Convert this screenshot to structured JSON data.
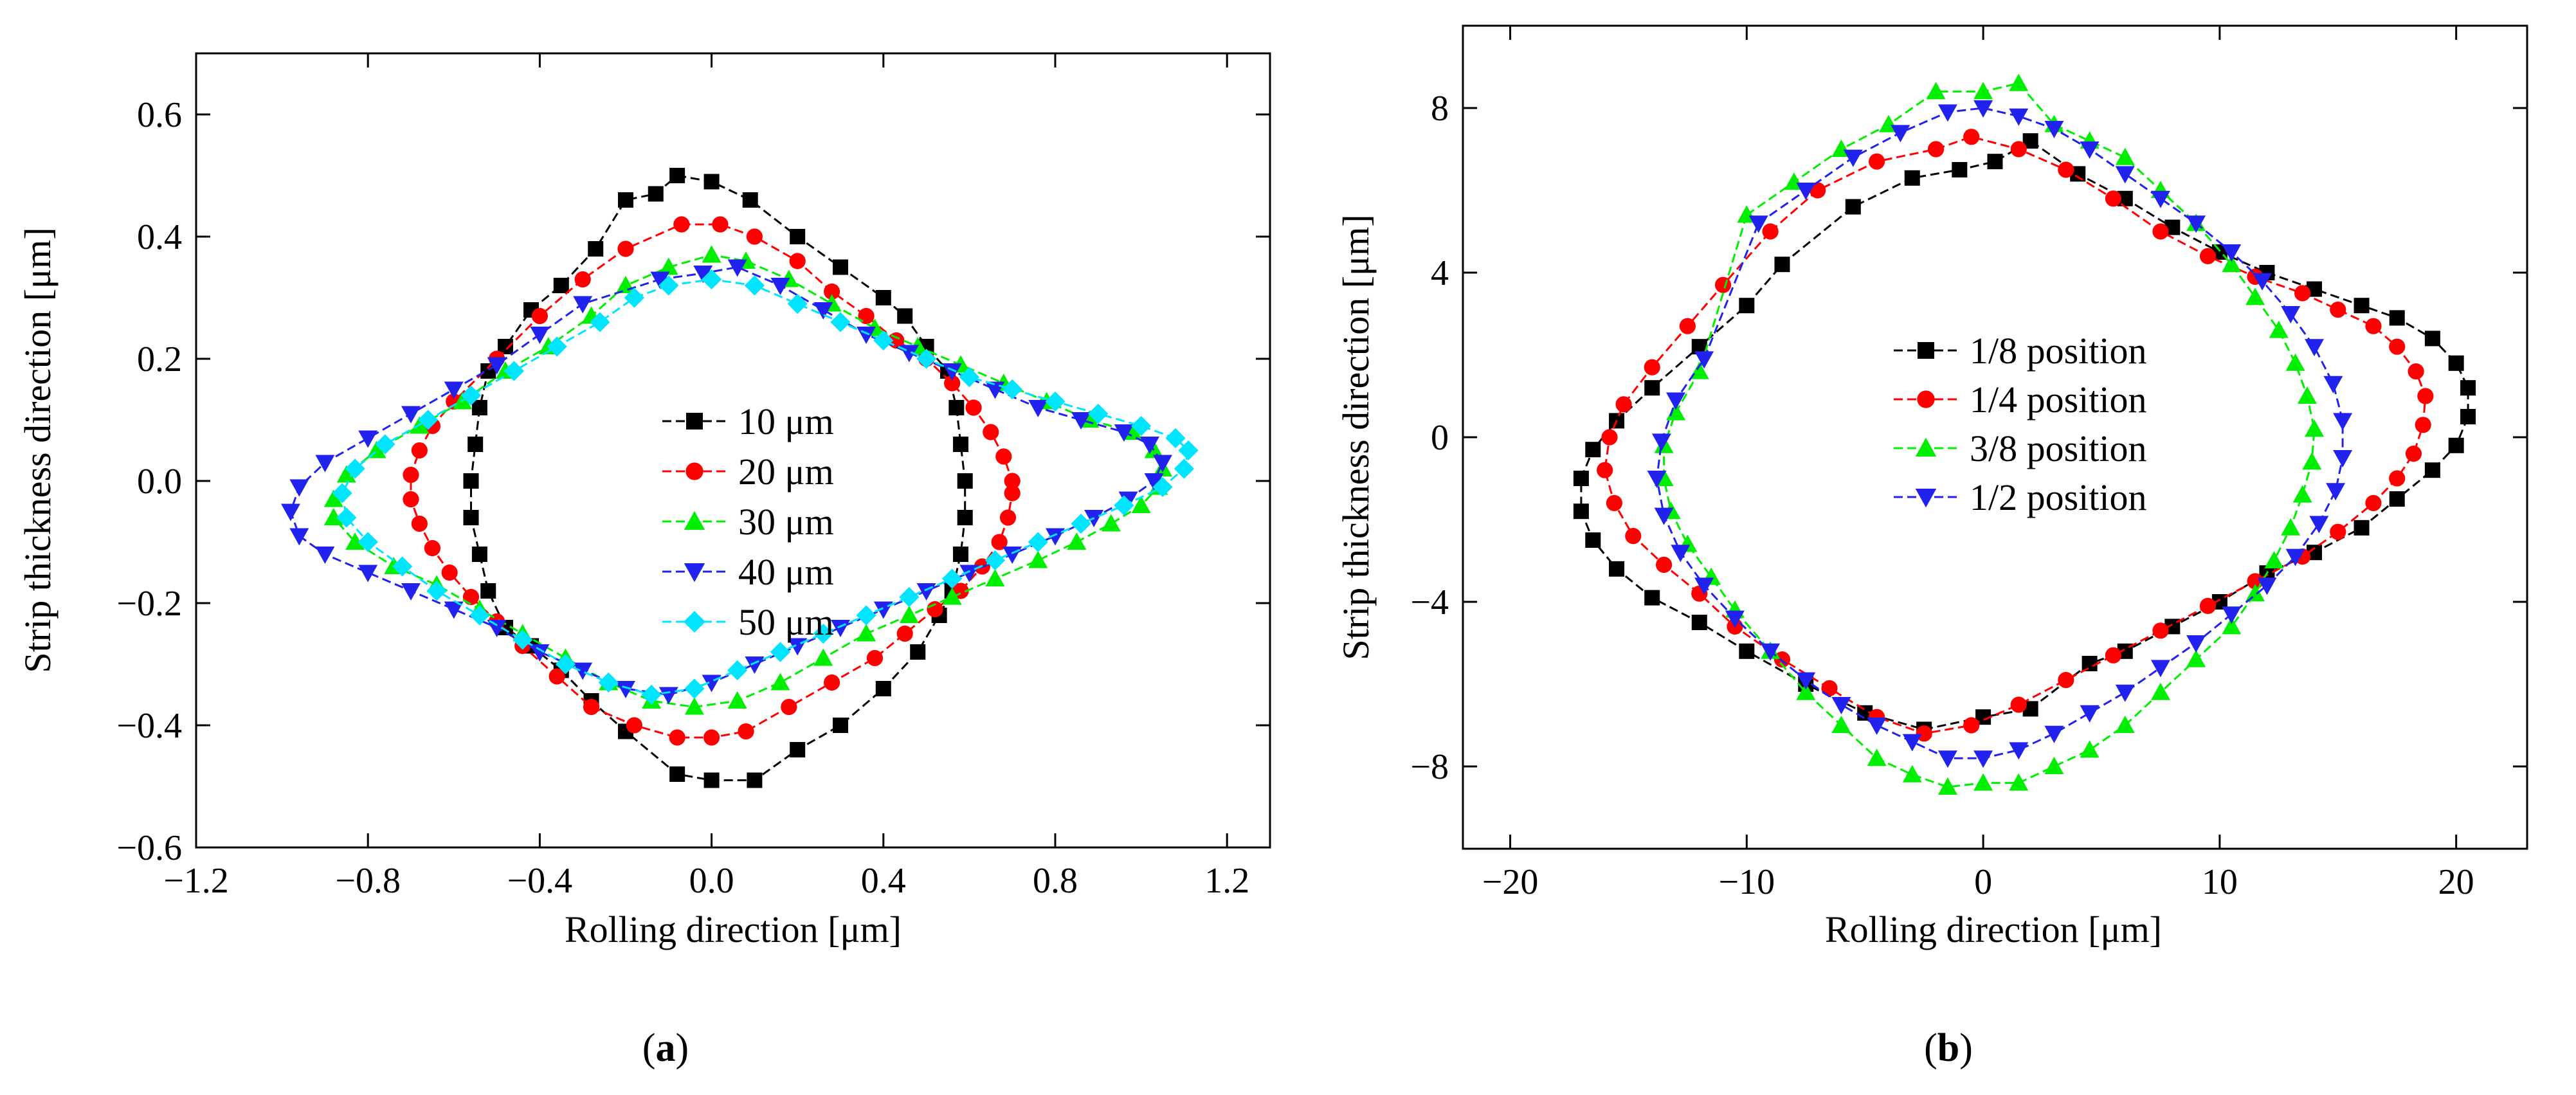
{
  "chart_data": [
    {
      "type": "scatter",
      "panel_label": "a",
      "xlabel": "Rolling direction [μm]",
      "ylabel": "Strip thickness direction [μm]",
      "xlim": [
        -1.2,
        1.3
      ],
      "ylim": [
        -0.6,
        0.7
      ],
      "xticks": [
        -1.2,
        -0.8,
        -0.4,
        0.0,
        0.4,
        0.8,
        1.2
      ],
      "xtick_labels": [
        "−1.2",
        "−0.8",
        "−0.4",
        "0.0",
        "0.4",
        "0.8",
        "1.2"
      ],
      "yticks": [
        -0.6,
        -0.4,
        -0.2,
        0.0,
        0.2,
        0.4,
        0.6
      ],
      "ytick_labels": [
        "−0.6",
        "−0.4",
        "−0.2",
        "0.0",
        "0.2",
        "0.4",
        "0.6"
      ],
      "legend_position": "center",
      "series": [
        {
          "name": "10 μm",
          "color": "#000000",
          "marker": "square",
          "x": [
            -0.08,
            0.0,
            0.09,
            0.2,
            0.3,
            0.4,
            0.45,
            0.5,
            0.55,
            0.57,
            0.58,
            0.59,
            0.59,
            0.58,
            0.56,
            0.53,
            0.48,
            0.4,
            0.3,
            0.2,
            0.1,
            0.0,
            -0.08,
            -0.2,
            -0.28,
            -0.35,
            -0.42,
            -0.48,
            -0.52,
            -0.54,
            -0.56,
            -0.56,
            -0.55,
            -0.54,
            -0.52,
            -0.48,
            -0.42,
            -0.35,
            -0.27,
            -0.2,
            -0.13
          ],
          "y": [
            0.5,
            0.49,
            0.46,
            0.4,
            0.35,
            0.3,
            0.27,
            0.22,
            0.18,
            0.12,
            0.06,
            0.0,
            -0.06,
            -0.12,
            -0.18,
            -0.22,
            -0.28,
            -0.34,
            -0.4,
            -0.44,
            -0.49,
            -0.49,
            -0.48,
            -0.41,
            -0.36,
            -0.31,
            -0.27,
            -0.24,
            -0.18,
            -0.12,
            -0.06,
            0.0,
            0.06,
            0.12,
            0.18,
            0.22,
            0.28,
            0.32,
            0.38,
            0.46,
            0.47
          ]
        },
        {
          "name": "20 μm",
          "color": "#ff0000",
          "marker": "circle",
          "x": [
            -0.07,
            0.02,
            0.1,
            0.2,
            0.28,
            0.36,
            0.43,
            0.5,
            0.56,
            0.61,
            0.65,
            0.68,
            0.7,
            0.7,
            0.69,
            0.67,
            0.63,
            0.58,
            0.52,
            0.45,
            0.38,
            0.28,
            0.18,
            0.08,
            0.0,
            -0.08,
            -0.18,
            -0.28,
            -0.36,
            -0.44,
            -0.5,
            -0.56,
            -0.61,
            -0.65,
            -0.68,
            -0.7,
            -0.7,
            -0.68,
            -0.65,
            -0.6,
            -0.5,
            -0.4,
            -0.3,
            -0.2
          ],
          "y": [
            0.42,
            0.42,
            0.4,
            0.36,
            0.31,
            0.27,
            0.23,
            0.2,
            0.16,
            0.12,
            0.08,
            0.04,
            0.0,
            -0.02,
            -0.06,
            -0.1,
            -0.14,
            -0.18,
            -0.21,
            -0.25,
            -0.29,
            -0.33,
            -0.37,
            -0.41,
            -0.42,
            -0.42,
            -0.4,
            -0.37,
            -0.32,
            -0.27,
            -0.23,
            -0.19,
            -0.15,
            -0.11,
            -0.07,
            -0.03,
            0.01,
            0.05,
            0.09,
            0.13,
            0.2,
            0.27,
            0.33,
            0.38
          ]
        },
        {
          "name": "30 μm",
          "color": "#00ee00",
          "marker": "triangle-up",
          "x": [
            -0.1,
            0.0,
            0.08,
            0.18,
            0.28,
            0.38,
            0.48,
            0.58,
            0.68,
            0.78,
            0.88,
            0.98,
            1.03,
            1.05,
            1.04,
            1.0,
            0.93,
            0.85,
            0.76,
            0.66,
            0.56,
            0.46,
            0.36,
            0.26,
            0.16,
            0.06,
            -0.04,
            -0.14,
            -0.24,
            -0.34,
            -0.44,
            -0.54,
            -0.64,
            -0.74,
            -0.83,
            -0.88,
            -0.88,
            -0.85,
            -0.78,
            -0.68,
            -0.58,
            -0.48,
            -0.38,
            -0.28,
            -0.2
          ],
          "y": [
            0.35,
            0.37,
            0.36,
            0.33,
            0.29,
            0.25,
            0.22,
            0.19,
            0.16,
            0.13,
            0.1,
            0.08,
            0.05,
            0.02,
            -0.01,
            -0.04,
            -0.07,
            -0.1,
            -0.13,
            -0.16,
            -0.19,
            -0.22,
            -0.25,
            -0.29,
            -0.33,
            -0.36,
            -0.37,
            -0.36,
            -0.33,
            -0.29,
            -0.25,
            -0.21,
            -0.17,
            -0.14,
            -0.1,
            -0.06,
            -0.03,
            0.01,
            0.05,
            0.09,
            0.13,
            0.18,
            0.22,
            0.27,
            0.32
          ]
        },
        {
          "name": "40 μm",
          "color": "#2222ee",
          "marker": "triangle-down",
          "x": [
            -0.12,
            -0.02,
            0.06,
            0.16,
            0.26,
            0.36,
            0.46,
            0.56,
            0.66,
            0.76,
            0.86,
            0.96,
            1.02,
            1.05,
            1.03,
            0.97,
            0.89,
            0.8,
            0.7,
            0.6,
            0.5,
            0.4,
            0.3,
            0.2,
            0.1,
            0.0,
            -0.1,
            -0.2,
            -0.3,
            -0.4,
            -0.5,
            -0.6,
            -0.7,
            -0.8,
            -0.9,
            -0.96,
            -0.98,
            -0.96,
            -0.9,
            -0.8,
            -0.7,
            -0.6,
            -0.5,
            -0.4,
            -0.3
          ],
          "y": [
            0.33,
            0.34,
            0.35,
            0.32,
            0.28,
            0.24,
            0.21,
            0.18,
            0.15,
            0.12,
            0.1,
            0.08,
            0.06,
            0.03,
            0.0,
            -0.03,
            -0.06,
            -0.09,
            -0.12,
            -0.15,
            -0.18,
            -0.21,
            -0.24,
            -0.27,
            -0.3,
            -0.33,
            -0.35,
            -0.34,
            -0.31,
            -0.28,
            -0.24,
            -0.21,
            -0.18,
            -0.15,
            -0.12,
            -0.09,
            -0.05,
            -0.01,
            0.03,
            0.07,
            0.11,
            0.15,
            0.19,
            0.24,
            0.29
          ]
        },
        {
          "name": "50 μm",
          "color": "#00e5ff",
          "marker": "diamond",
          "x": [
            -0.1,
            0.0,
            0.1,
            0.2,
            0.3,
            0.4,
            0.5,
            0.6,
            0.7,
            0.8,
            0.9,
            1.0,
            1.08,
            1.11,
            1.1,
            1.05,
            0.96,
            0.86,
            0.76,
            0.66,
            0.56,
            0.46,
            0.36,
            0.26,
            0.16,
            0.06,
            -0.04,
            -0.14,
            -0.24,
            -0.34,
            -0.44,
            -0.54,
            -0.64,
            -0.72,
            -0.8,
            -0.85,
            -0.86,
            -0.83,
            -0.76,
            -0.66,
            -0.56,
            -0.46,
            -0.36,
            -0.26,
            -0.18
          ],
          "y": [
            0.32,
            0.33,
            0.32,
            0.29,
            0.26,
            0.23,
            0.2,
            0.17,
            0.15,
            0.13,
            0.11,
            0.09,
            0.07,
            0.05,
            0.02,
            -0.01,
            -0.04,
            -0.07,
            -0.1,
            -0.13,
            -0.16,
            -0.19,
            -0.22,
            -0.25,
            -0.28,
            -0.31,
            -0.34,
            -0.35,
            -0.33,
            -0.3,
            -0.26,
            -0.22,
            -0.18,
            -0.14,
            -0.1,
            -0.06,
            -0.02,
            0.02,
            0.06,
            0.1,
            0.14,
            0.18,
            0.22,
            0.26,
            0.3
          ]
        }
      ]
    },
    {
      "type": "scatter",
      "panel_label": "b",
      "xlabel": "Rolling direction [μm]",
      "ylabel": "Strip thickness direction [μm]",
      "xlim": [
        -22,
        23
      ],
      "ylim": [
        -10,
        10
      ],
      "xticks": [
        -20,
        -10,
        0,
        10,
        20
      ],
      "xtick_labels": [
        "−20",
        "−10",
        "0",
        "10",
        "20"
      ],
      "yticks": [
        -8,
        -4,
        0,
        4,
        8
      ],
      "ytick_labels": [
        "−8",
        "−4",
        "0",
        "4",
        "8"
      ],
      "legend_position": "center",
      "series": [
        {
          "name": "1/8 position",
          "color": "#000000",
          "marker": "square",
          "x": [
            -8.5,
            -5.5,
            -3.0,
            -1.0,
            0.5,
            2.0,
            4.0,
            6.0,
            8.0,
            10.0,
            12.0,
            14.0,
            16.0,
            17.5,
            19.0,
            20.0,
            20.5,
            20.5,
            20.0,
            19.0,
            17.5,
            16.0,
            14.0,
            12.0,
            10.0,
            8.0,
            6.0,
            4.5,
            2.0,
            0.0,
            -2.5,
            -5.0,
            -7.5,
            -10.0,
            -12.0,
            -14.0,
            -15.5,
            -16.5,
            -17.0,
            -17.0,
            -16.5,
            -15.5,
            -14.0,
            -12.0,
            -10.0
          ],
          "y": [
            4.2,
            5.6,
            6.3,
            6.5,
            6.7,
            7.2,
            6.4,
            5.8,
            5.1,
            4.5,
            4.0,
            3.6,
            3.2,
            2.9,
            2.4,
            1.8,
            1.2,
            0.5,
            -0.2,
            -0.8,
            -1.5,
            -2.2,
            -2.8,
            -3.3,
            -4.0,
            -4.6,
            -5.2,
            -5.5,
            -6.6,
            -6.8,
            -7.1,
            -6.7,
            -6.0,
            -5.2,
            -4.5,
            -3.9,
            -3.2,
            -2.5,
            -1.8,
            -1.0,
            -0.3,
            0.4,
            1.2,
            2.2,
            3.2
          ]
        },
        {
          "name": "1/4 position",
          "color": "#ff0000",
          "marker": "circle",
          "x": [
            -9.0,
            -7.0,
            -4.5,
            -2.0,
            -0.5,
            1.5,
            3.5,
            5.5,
            7.5,
            9.5,
            11.5,
            13.5,
            15.0,
            16.5,
            17.5,
            18.3,
            18.7,
            18.6,
            18.2,
            17.5,
            16.5,
            15.0,
            13.5,
            11.5,
            9.5,
            7.5,
            5.5,
            3.5,
            1.5,
            -0.5,
            -2.5,
            -4.5,
            -6.5,
            -8.5,
            -10.5,
            -12.0,
            -13.5,
            -14.8,
            -15.6,
            -16.0,
            -15.8,
            -15.2,
            -14.0,
            -12.5,
            -11.0
          ],
          "y": [
            5.0,
            6.0,
            6.7,
            7.0,
            7.3,
            7.0,
            6.5,
            5.8,
            5.0,
            4.4,
            3.9,
            3.5,
            3.1,
            2.7,
            2.2,
            1.6,
            1.0,
            0.3,
            -0.4,
            -1.0,
            -1.6,
            -2.3,
            -2.9,
            -3.5,
            -4.1,
            -4.7,
            -5.3,
            -5.9,
            -6.5,
            -7.0,
            -7.2,
            -6.8,
            -6.1,
            -5.4,
            -4.6,
            -3.8,
            -3.1,
            -2.4,
            -1.6,
            -0.8,
            0.0,
            0.8,
            1.7,
            2.7,
            3.7
          ]
        },
        {
          "name": "3/8 position",
          "color": "#00ee00",
          "marker": "triangle-up",
          "x": [
            -10.0,
            -8.0,
            -6.0,
            -4.0,
            -2.0,
            0.0,
            1.5,
            3.0,
            4.5,
            6.0,
            7.5,
            9.0,
            10.5,
            11.5,
            12.5,
            13.2,
            13.7,
            14.0,
            13.9,
            13.5,
            13.0,
            12.3,
            11.5,
            10.5,
            9.0,
            7.5,
            6.0,
            4.5,
            3.0,
            1.5,
            0.0,
            -1.5,
            -3.0,
            -4.5,
            -6.0,
            -7.5,
            -9.0,
            -10.5,
            -11.5,
            -12.5,
            -13.2,
            -13.5,
            -13.5,
            -13.0,
            -12.0
          ],
          "y": [
            5.4,
            6.2,
            7.0,
            7.6,
            8.4,
            8.4,
            8.6,
            7.6,
            7.2,
            6.8,
            6.0,
            5.2,
            4.2,
            3.4,
            2.6,
            1.8,
            1.0,
            0.2,
            -0.6,
            -1.4,
            -2.2,
            -3.0,
            -3.8,
            -4.6,
            -5.4,
            -6.2,
            -7.0,
            -7.6,
            -8.0,
            -8.4,
            -8.4,
            -8.5,
            -8.2,
            -7.8,
            -7.0,
            -6.2,
            -5.2,
            -4.2,
            -3.4,
            -2.6,
            -1.8,
            -1.0,
            -0.2,
            0.6,
            1.6
          ]
        },
        {
          "name": "1/2 position",
          "color": "#2222ee",
          "marker": "triangle-down",
          "x": [
            -9.5,
            -7.5,
            -5.5,
            -3.5,
            -1.5,
            0.0,
            1.5,
            3.0,
            4.5,
            6.0,
            7.5,
            9.0,
            10.5,
            11.8,
            13.0,
            14.0,
            14.8,
            15.2,
            15.2,
            14.9,
            14.2,
            13.2,
            12.0,
            10.5,
            9.0,
            7.5,
            6.0,
            4.5,
            3.0,
            1.5,
            0.0,
            -1.5,
            -3.0,
            -4.5,
            -6.0,
            -7.5,
            -9.0,
            -10.5,
            -11.8,
            -12.8,
            -13.5,
            -13.8,
            -13.6,
            -13.0,
            -11.8
          ],
          "y": [
            5.2,
            6.0,
            6.8,
            7.4,
            7.9,
            8.0,
            7.8,
            7.5,
            7.0,
            6.4,
            5.8,
            5.2,
            4.5,
            3.8,
            3.0,
            2.2,
            1.3,
            0.4,
            -0.5,
            -1.3,
            -2.1,
            -2.9,
            -3.6,
            -4.3,
            -5.0,
            -5.6,
            -6.2,
            -6.7,
            -7.2,
            -7.6,
            -7.8,
            -7.8,
            -7.4,
            -7.0,
            -6.5,
            -5.9,
            -5.2,
            -4.4,
            -3.6,
            -2.8,
            -1.9,
            -1.0,
            -0.1,
            0.9,
            1.9
          ]
        }
      ]
    }
  ]
}
